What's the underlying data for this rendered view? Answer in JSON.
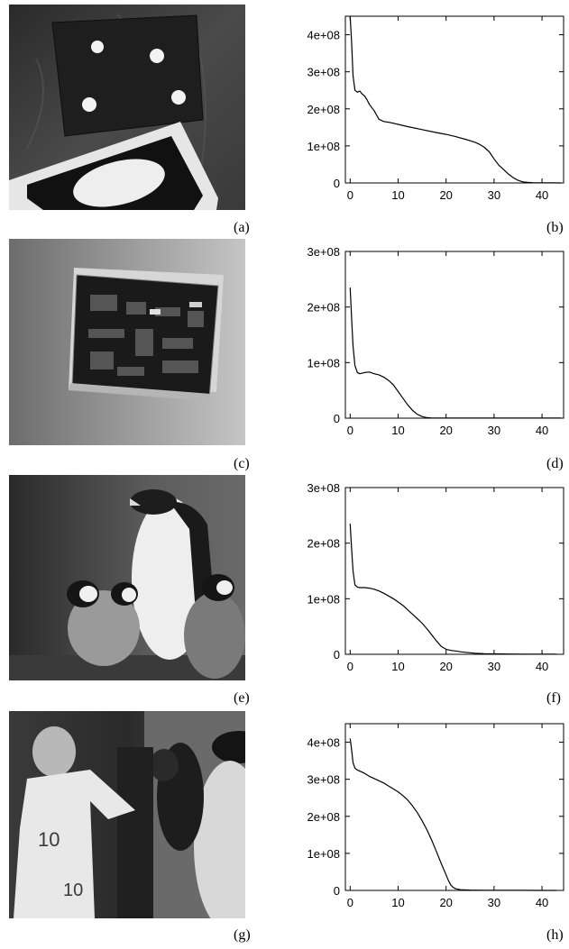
{
  "panels": [
    {
      "label": "(a)"
    },
    {
      "label": "(b)"
    },
    {
      "label": "(c)"
    },
    {
      "label": "(d)"
    },
    {
      "label": "(e)"
    },
    {
      "label": "(f)"
    },
    {
      "label": "(g)"
    },
    {
      "label": "(h)"
    }
  ],
  "photos": [
    {
      "panel": "(a)",
      "subject": "dark card with four white dots and a black card with a white ellipse"
    },
    {
      "panel": "(c)",
      "subject": "circuit board on a light grey background"
    },
    {
      "panel": "(e)",
      "subject": "adult penguin with three chicks"
    },
    {
      "panel": "(g)",
      "subject": "footballer in white jersey number 10, composited with a penguin"
    }
  ],
  "chart_data": [
    {
      "panel": "(b)",
      "type": "line",
      "xlim": [
        -1,
        44.5
      ],
      "ylim": [
        0,
        450000000
      ],
      "xticks": [
        "0",
        "10",
        "20",
        "30",
        "40"
      ],
      "yticks": [
        "0",
        "1e+08",
        "2e+08",
        "3e+08",
        "4e+08"
      ],
      "series": [
        {
          "x": [
            0,
            0.3,
            0.6,
            1,
            1.5,
            2,
            2.5,
            3,
            3.5,
            4,
            5,
            6,
            7,
            8,
            10,
            12,
            15,
            18,
            20,
            22,
            24,
            26,
            27,
            28,
            29,
            30,
            31,
            32,
            33,
            34,
            35,
            36,
            37,
            38,
            39,
            40,
            42,
            44
          ],
          "y": [
            450000000,
            380000000,
            290000000,
            250000000,
            245000000,
            248000000,
            240000000,
            235000000,
            225000000,
            212000000,
            195000000,
            172000000,
            166000000,
            164000000,
            158000000,
            152000000,
            144000000,
            136000000,
            131000000,
            125000000,
            118000000,
            110000000,
            104000000,
            96000000,
            84000000,
            65000000,
            48000000,
            36000000,
            24000000,
            14000000,
            7000000,
            3000000,
            1500000,
            800000,
            500000,
            300000,
            200000,
            100000
          ]
        }
      ]
    },
    {
      "panel": "(d)",
      "type": "line",
      "xlim": [
        -1,
        44.5
      ],
      "ylim": [
        0,
        300000000
      ],
      "xticks": [
        "0",
        "10",
        "20",
        "30",
        "40"
      ],
      "yticks": [
        "0",
        "1e+08",
        "2e+08",
        "3e+08"
      ],
      "series": [
        {
          "x": [
            0,
            0.3,
            0.6,
            1,
            1.5,
            2,
            3,
            4,
            5,
            6,
            7,
            8,
            9,
            10,
            11,
            12,
            13,
            14,
            15,
            16,
            17,
            20,
            25,
            30,
            35,
            40,
            44
          ],
          "y": [
            235000000,
            180000000,
            130000000,
            95000000,
            82000000,
            80000000,
            82000000,
            83000000,
            80000000,
            78000000,
            74000000,
            68000000,
            60000000,
            48000000,
            36000000,
            24000000,
            14000000,
            7000000,
            3000000,
            1000000,
            400000,
            100000,
            100000,
            100000,
            100000,
            100000,
            100000
          ]
        }
      ]
    },
    {
      "panel": "(f)",
      "type": "line",
      "xlim": [
        -1,
        44.5
      ],
      "ylim": [
        0,
        300000000
      ],
      "xticks": [
        "0",
        "10",
        "20",
        "30",
        "40"
      ],
      "yticks": [
        "0",
        "1e+08",
        "2e+08",
        "3e+08"
      ],
      "series": [
        {
          "x": [
            0,
            0.3,
            0.6,
            1,
            1.5,
            2,
            3,
            4,
            5,
            6,
            7,
            8,
            9,
            10,
            11,
            12,
            13,
            14,
            15,
            16,
            17,
            18,
            19,
            20,
            21,
            22,
            23,
            24,
            26,
            28,
            30,
            33,
            36,
            40,
            43
          ],
          "y": [
            235000000,
            190000000,
            150000000,
            125000000,
            121000000,
            120000000,
            120000000,
            119000000,
            117000000,
            114000000,
            110000000,
            105000000,
            100000000,
            94000000,
            88000000,
            80000000,
            72000000,
            64000000,
            56000000,
            46000000,
            35000000,
            24000000,
            14000000,
            9000000,
            7000000,
            6000000,
            4500000,
            3500000,
            2000000,
            1200000,
            800000,
            500000,
            300000,
            200000,
            100000
          ]
        }
      ]
    },
    {
      "panel": "(h)",
      "type": "line",
      "xlim": [
        -1,
        44.5
      ],
      "ylim": [
        0,
        450000000
      ],
      "xticks": [
        "0",
        "10",
        "20",
        "30",
        "40"
      ],
      "yticks": [
        "0",
        "1e+08",
        "2e+08",
        "3e+08",
        "4e+08"
      ],
      "series": [
        {
          "x": [
            0,
            0.3,
            0.6,
            1,
            1.5,
            2,
            3,
            4,
            5,
            6,
            7,
            8,
            9,
            10,
            11,
            12,
            13,
            14,
            15,
            16,
            17,
            18,
            19,
            20,
            20.5,
            21,
            21.5,
            22,
            23,
            25,
            28,
            32,
            36,
            40,
            43
          ],
          "y": [
            410000000,
            380000000,
            345000000,
            330000000,
            325000000,
            322000000,
            316000000,
            308000000,
            302000000,
            296000000,
            290000000,
            282000000,
            274000000,
            266000000,
            256000000,
            244000000,
            228000000,
            210000000,
            188000000,
            164000000,
            136000000,
            104000000,
            72000000,
            42000000,
            26000000,
            14000000,
            8000000,
            4500000,
            2000000,
            1000000,
            500000,
            300000,
            200000,
            100000,
            100000
          ]
        }
      ]
    }
  ]
}
